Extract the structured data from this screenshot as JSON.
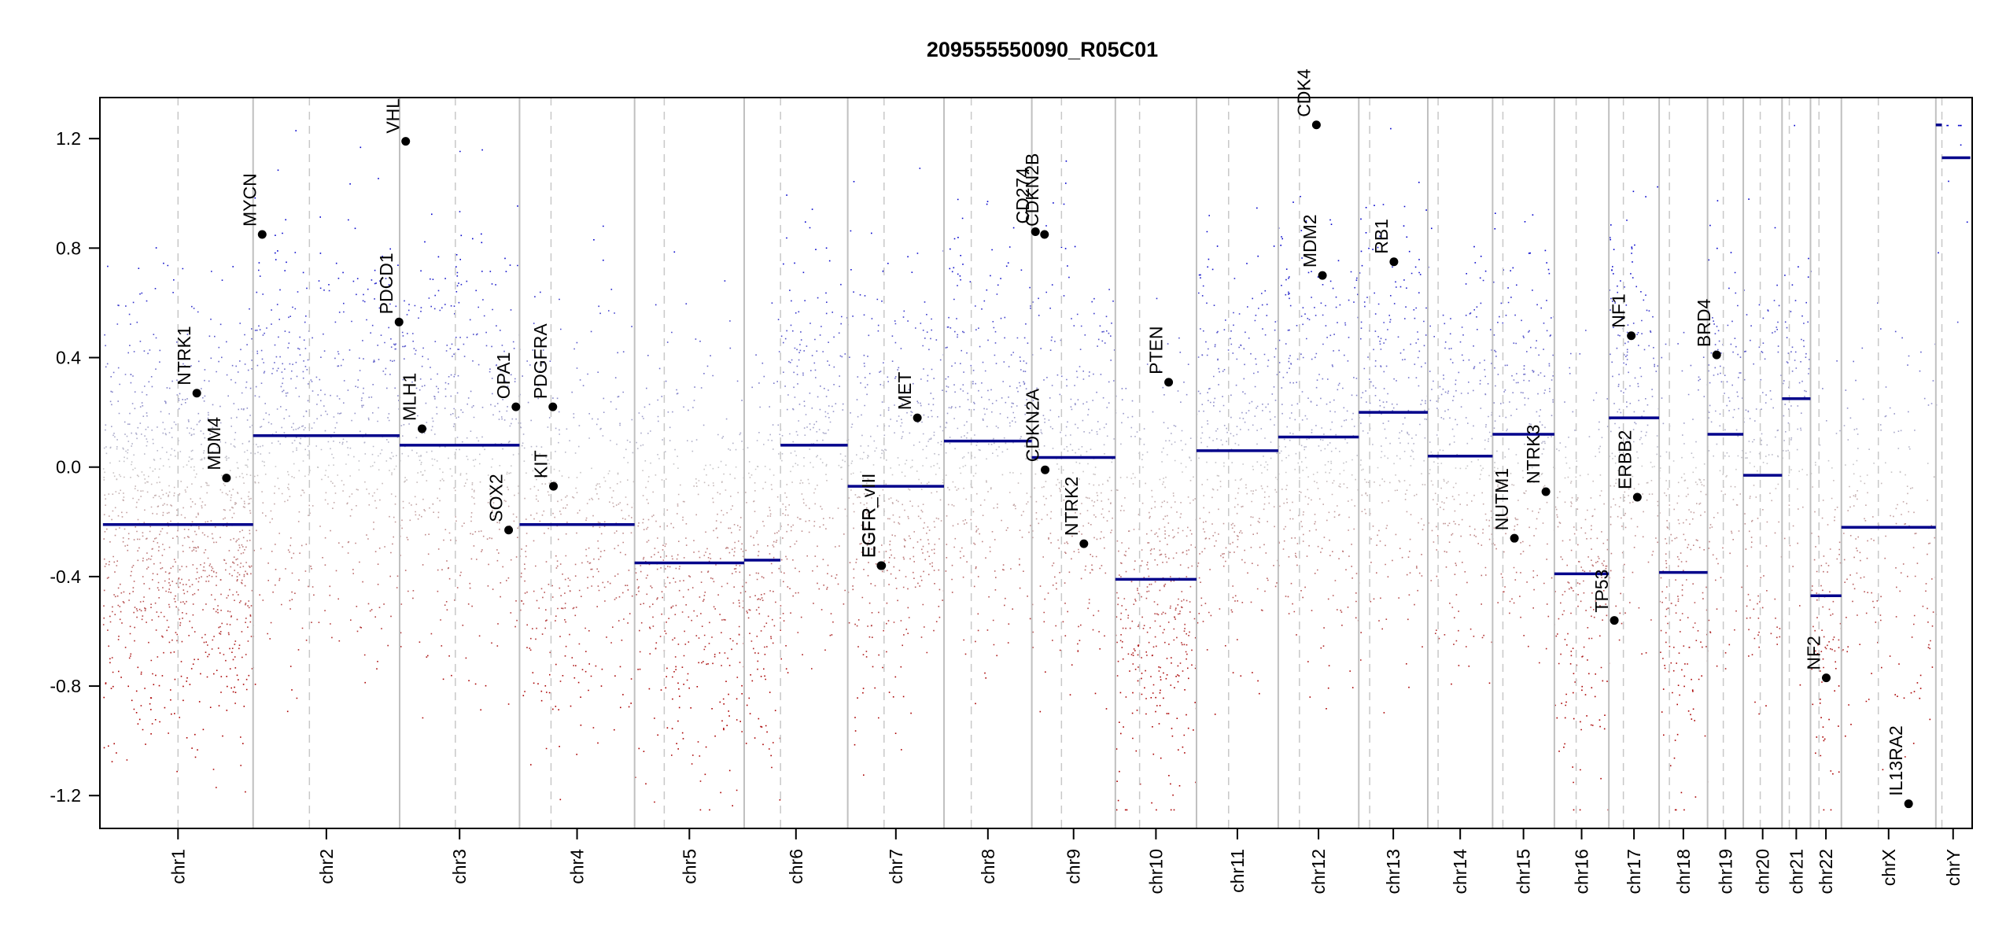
{
  "chart_data": {
    "type": "scatter",
    "title": "209555550090_R05C01",
    "xlabel": "",
    "ylabel": "",
    "ylim": [
      -1.32,
      1.35
    ],
    "clip": [
      -1.25,
      1.25
    ],
    "y_ticks": [
      -1.2,
      -0.8,
      -0.4,
      0.0,
      0.4,
      0.8,
      1.2
    ],
    "y_tick_labels": [
      "-1.2",
      "-0.8",
      "-0.4",
      "0.0",
      "0.4",
      "0.8",
      "1.2"
    ],
    "grid": false,
    "legend": "none",
    "colors": {
      "gain": "#0000cc",
      "loss": "#aa0000",
      "segment": "#00008b",
      "boundary": "#c0c0c0",
      "centromere": "#c8c8c8",
      "marker": "#000000"
    },
    "chromosomes": [
      {
        "name": "chr1",
        "label": "chr1",
        "start": 0,
        "end": 248,
        "centromere": 124,
        "segment": -0.21,
        "density": 1.0
      },
      {
        "name": "chr2",
        "label": "chr2",
        "start": 248,
        "end": 490,
        "centromere": 341,
        "segment": 0.115,
        "density": 0.55
      },
      {
        "name": "chr3",
        "label": "chr3",
        "start": 490,
        "end": 688,
        "centromere": 582,
        "segment": 0.08,
        "density": 0.55
      },
      {
        "name": "chr4",
        "label": "chr4",
        "start": 688,
        "end": 878,
        "centromere": 740,
        "segment": -0.21,
        "density": 0.5
      },
      {
        "name": "chr5",
        "label": "chr5",
        "start": 878,
        "end": 1059,
        "centromere": 927,
        "segment": -0.35,
        "density": 0.6
      },
      {
        "name": "chr6",
        "label": "chr6",
        "start": 1059,
        "end": 1230,
        "centromere": 1119,
        "segment": -0.34,
        "segment2": 0.08,
        "split": 1119,
        "density": 0.6
      },
      {
        "name": "chr7",
        "label": "chr7",
        "start": 1230,
        "end": 1389,
        "centromere": 1290,
        "segment": -0.07,
        "density": 0.65
      },
      {
        "name": "chr8",
        "label": "chr8",
        "start": 1389,
        "end": 1534,
        "centromere": 1434,
        "segment": 0.095,
        "density": 0.55
      },
      {
        "name": "chr9",
        "label": "chr9",
        "start": 1534,
        "end": 1672,
        "centromere": 1583,
        "segment": 0.035,
        "density": 0.55
      },
      {
        "name": "chr10",
        "label": "chr10",
        "start": 1672,
        "end": 1806,
        "centromere": 1712,
        "segment": -0.41,
        "density": 0.75
      },
      {
        "name": "chr11",
        "label": "chr11",
        "start": 1806,
        "end": 1941,
        "centromere": 1859,
        "segment": 0.06,
        "density": 0.6
      },
      {
        "name": "chr12",
        "label": "chr12",
        "start": 1941,
        "end": 2074,
        "centromere": 1976,
        "segment": 0.11,
        "density": 0.6
      },
      {
        "name": "chr13",
        "label": "chr13",
        "start": 2074,
        "end": 2188,
        "centromere": 2092,
        "segment": 0.2,
        "density": 0.55
      },
      {
        "name": "chr14",
        "label": "chr14",
        "start": 2188,
        "end": 2295,
        "centromere": 2205,
        "segment": 0.04,
        "density": 0.55
      },
      {
        "name": "chr15",
        "label": "chr15",
        "start": 2295,
        "end": 2397,
        "centromere": 2312,
        "segment": 0.12,
        "density": 0.55
      },
      {
        "name": "chr16",
        "label": "chr16",
        "start": 2397,
        "end": 2487,
        "centromere": 2433,
        "segment": -0.39,
        "density": 0.55
      },
      {
        "name": "chr17",
        "label": "chr17",
        "start": 2487,
        "end": 2570,
        "centromere": 2511,
        "segment": 0.18,
        "density": 0.6
      },
      {
        "name": "chr18",
        "label": "chr18",
        "start": 2570,
        "end": 2650,
        "centromere": 2587,
        "segment": -0.385,
        "density": 0.6
      },
      {
        "name": "chr19",
        "label": "chr19",
        "start": 2650,
        "end": 2709,
        "centromere": 2676,
        "segment": 0.12,
        "density": 0.5
      },
      {
        "name": "chr20",
        "label": "chr20",
        "start": 2709,
        "end": 2773,
        "centromere": 2737,
        "segment": -0.03,
        "density": 0.5
      },
      {
        "name": "chr21",
        "label": "chr21",
        "start": 2773,
        "end": 2820,
        "centromere": 2785,
        "segment": 0.25,
        "density": 0.4
      },
      {
        "name": "chr22",
        "label": "chr22",
        "start": 2820,
        "end": 2871,
        "centromere": 2834,
        "segment": -0.47,
        "density": 0.5
      },
      {
        "name": "chrX",
        "label": "chrX",
        "start": 2871,
        "end": 3027,
        "centromere": 2932,
        "segment": -0.22,
        "density": 0.3
      },
      {
        "name": "chrY",
        "label": "chrY",
        "start": 3027,
        "end": 3084,
        "centromere": 3037,
        "segment": 1.25,
        "segment2": 1.13,
        "split": 3037,
        "density": 0.05
      }
    ],
    "genes": [
      {
        "label": "NTRK1",
        "x": 155,
        "y": 0.27
      },
      {
        "label": "MDM4",
        "x": 204,
        "y": -0.04
      },
      {
        "label": "MYCN",
        "x": 263,
        "y": 0.85
      },
      {
        "label": "PDCD1",
        "x": 489,
        "y": 0.53
      },
      {
        "label": "VHL",
        "x": 500,
        "y": 1.19
      },
      {
        "label": "MLH1",
        "x": 527,
        "y": 0.14
      },
      {
        "label": "SOX2",
        "x": 670,
        "y": -0.23
      },
      {
        "label": "OPA1",
        "x": 682,
        "y": 0.22
      },
      {
        "label": "PDGFRA",
        "x": 743,
        "y": 0.22
      },
      {
        "label": "KIT",
        "x": 744,
        "y": -0.07
      },
      {
        "label": "EGFR_vIII",
        "x": 1285,
        "y": -0.36
      },
      {
        "label": "EGFR",
        "x": 1286,
        "y": -0.36
      },
      {
        "label": "MET",
        "x": 1345,
        "y": 0.18
      },
      {
        "label": "CD274",
        "x": 1540,
        "y": 0.86
      },
      {
        "label": "CDKN2B",
        "x": 1555,
        "y": 0.85
      },
      {
        "label": "CDKN2A",
        "x": 1556,
        "y": -0.01
      },
      {
        "label": "NTRK2",
        "x": 1620,
        "y": -0.28
      },
      {
        "label": "PTEN",
        "x": 1760,
        "y": 0.31
      },
      {
        "label": "CDK4",
        "x": 2004,
        "y": 1.25
      },
      {
        "label": "MDM2",
        "x": 2014,
        "y": 0.7
      },
      {
        "label": "RB1",
        "x": 2132,
        "y": 0.75
      },
      {
        "label": "NUTM1",
        "x": 2331,
        "y": -0.26
      },
      {
        "label": "NTRK3",
        "x": 2383,
        "y": -0.09
      },
      {
        "label": "TP53",
        "x": 2496,
        "y": -0.56
      },
      {
        "label": "NF1",
        "x": 2524,
        "y": 0.48
      },
      {
        "label": "ERBB2",
        "x": 2534,
        "y": -0.11
      },
      {
        "label": "BRD4",
        "x": 2665,
        "y": 0.41
      },
      {
        "label": "NF2",
        "x": 2846,
        "y": -0.77
      },
      {
        "label": "IL13RA2",
        "x": 2982,
        "y": -1.23
      }
    ]
  }
}
